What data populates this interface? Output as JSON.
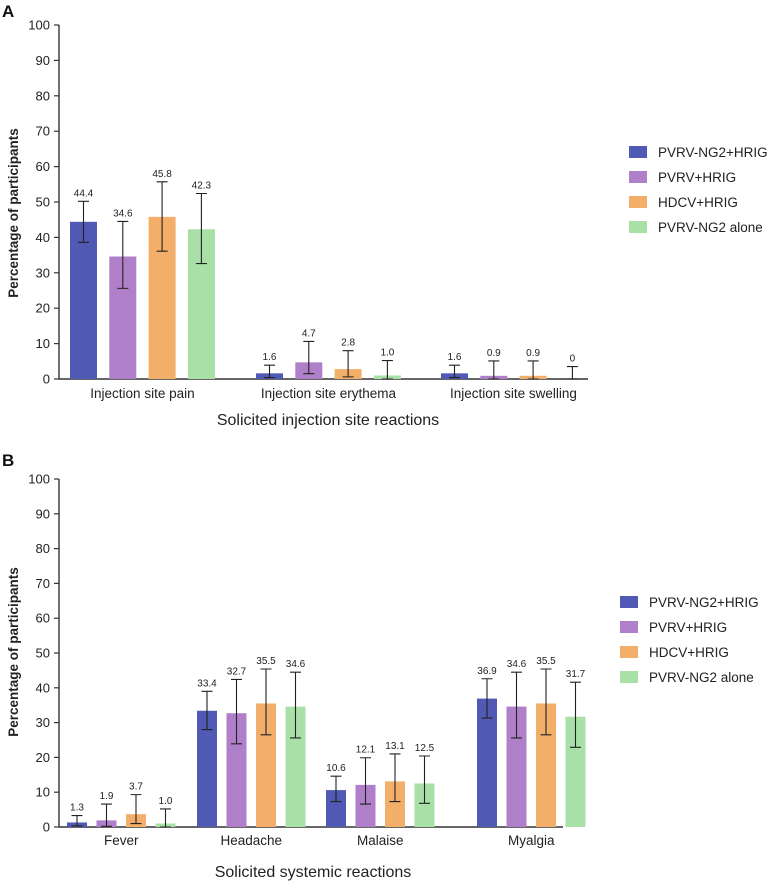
{
  "chart_data": [
    {
      "panel": "A",
      "type": "bar",
      "xlabel": "Solicited injection site reactions",
      "ylabel": "Percentage of participants",
      "ylim": [
        0,
        100
      ],
      "yticks": [
        0,
        10,
        20,
        30,
        40,
        50,
        60,
        70,
        80,
        90,
        100
      ],
      "categories": [
        "Injection site pain",
        "Injection site erythema",
        "Injection site swelling"
      ],
      "legend_position": "right",
      "series": [
        {
          "name": "PVRV-NG2+HRIG",
          "color": "#5059b3",
          "values": [
            44.4,
            1.6,
            1.6
          ],
          "labels": [
            "44.4",
            "1.6",
            "1.6"
          ],
          "ci": [
            [
              38.6,
              50.2
            ],
            [
              0.4,
              3.9
            ],
            [
              0.4,
              3.9
            ]
          ]
        },
        {
          "name": "PVRV+HRIG",
          "color": "#b07fca",
          "values": [
            34.6,
            4.7,
            0.9
          ],
          "labels": [
            "34.6",
            "4.7",
            "0.9"
          ],
          "ci": [
            [
              25.6,
              44.5
            ],
            [
              1.5,
              10.6
            ],
            [
              0.0,
              5.1
            ]
          ]
        },
        {
          "name": "HDCV+HRIG",
          "color": "#f3ae6a",
          "values": [
            45.8,
            2.8,
            0.9
          ],
          "labels": [
            "45.8",
            "2.8",
            "0.9"
          ],
          "ci": [
            [
              36.1,
              55.7
            ],
            [
              0.6,
              8.0
            ],
            [
              0.0,
              5.1
            ]
          ]
        },
        {
          "name": "PVRV-NG2 alone",
          "color": "#a9e0a8",
          "values": [
            42.3,
            1.0,
            0
          ],
          "labels": [
            "42.3",
            "1.0",
            "0"
          ],
          "ci": [
            [
              32.6,
              52.4
            ],
            [
              0.0,
              5.2
            ],
            [
              0.0,
              3.5
            ]
          ]
        }
      ]
    },
    {
      "panel": "B",
      "type": "bar",
      "xlabel": "Solicited systemic reactions",
      "ylabel": "Percentage of participants",
      "ylim": [
        0,
        100
      ],
      "yticks": [
        0,
        10,
        20,
        30,
        40,
        50,
        60,
        70,
        80,
        90,
        100
      ],
      "categories": [
        "Fever",
        "Headache",
        "Malaise",
        "Myalgia"
      ],
      "legend_position": "right",
      "series": [
        {
          "name": "PVRV-NG2+HRIG",
          "color": "#5059b3",
          "values": [
            1.3,
            33.4,
            10.6,
            36.9
          ],
          "labels": [
            "1.3",
            "33.4",
            "10.6",
            "36.9"
          ],
          "ci": [
            [
              0.3,
              3.3
            ],
            [
              28.0,
              39.0
            ],
            [
              7.3,
              14.6
            ],
            [
              31.3,
              42.6
            ]
          ]
        },
        {
          "name": "PVRV+HRIG",
          "color": "#b07fca",
          "values": [
            1.9,
            32.7,
            12.1,
            34.6
          ],
          "labels": [
            "1.9",
            "32.7",
            "12.1",
            "34.6"
          ],
          "ci": [
            [
              0.2,
              6.6
            ],
            [
              23.9,
              42.4
            ],
            [
              6.6,
              19.9
            ],
            [
              25.6,
              44.5
            ]
          ]
        },
        {
          "name": "HDCV+HRIG",
          "color": "#f3ae6a",
          "values": [
            3.7,
            35.5,
            13.1,
            35.5
          ],
          "labels": [
            "3.7",
            "35.5",
            "13.1",
            "35.5"
          ],
          "ci": [
            [
              1.0,
              9.3
            ],
            [
              26.5,
              45.4
            ],
            [
              7.3,
              21.0
            ],
            [
              26.5,
              45.4
            ]
          ]
        },
        {
          "name": "PVRV-NG2 alone",
          "color": "#a9e0a8",
          "values": [
            1.0,
            34.6,
            12.5,
            31.7
          ],
          "labels": [
            "1.0",
            "34.6",
            "12.5",
            "31.7"
          ],
          "ci": [
            [
              0.0,
              5.2
            ],
            [
              25.6,
              44.5
            ],
            [
              6.8,
              20.4
            ],
            [
              22.9,
              41.6
            ]
          ]
        }
      ]
    }
  ]
}
